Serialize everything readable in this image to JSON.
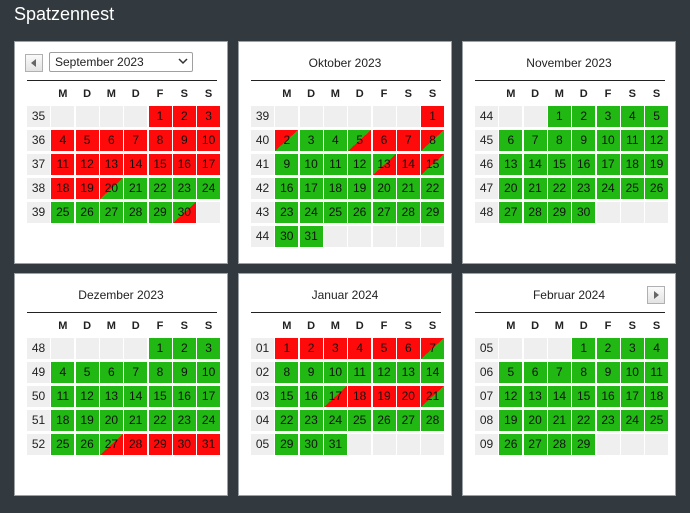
{
  "app": {
    "title": "Spatzennest"
  },
  "weekdays": [
    "M",
    "D",
    "M",
    "D",
    "F",
    "S",
    "S"
  ],
  "months": [
    {
      "label": "September 2023",
      "select": true,
      "prev": true,
      "weeks": [
        {
          "wk": "35",
          "days": [
            null,
            null,
            null,
            null,
            [
              "1",
              "b"
            ],
            [
              "2",
              "b"
            ],
            [
              "3",
              "b"
            ]
          ]
        },
        {
          "wk": "36",
          "days": [
            [
              "4",
              "b"
            ],
            [
              "5",
              "b"
            ],
            [
              "6",
              "b"
            ],
            [
              "7",
              "b"
            ],
            [
              "8",
              "b"
            ],
            [
              "9",
              "b"
            ],
            [
              "10",
              "b"
            ]
          ]
        },
        {
          "wk": "37",
          "days": [
            [
              "11",
              "b"
            ],
            [
              "12",
              "b"
            ],
            [
              "13",
              "b"
            ],
            [
              "14",
              "b"
            ],
            [
              "15",
              "b"
            ],
            [
              "16",
              "b"
            ],
            [
              "17",
              "b"
            ]
          ]
        },
        {
          "wk": "38",
          "days": [
            [
              "18",
              "b"
            ],
            [
              "19",
              "b"
            ],
            [
              "20",
              "o"
            ],
            [
              "21",
              "f"
            ],
            [
              "22",
              "f"
            ],
            [
              "23",
              "f"
            ],
            [
              "24",
              "f"
            ]
          ]
        },
        {
          "wk": "39",
          "days": [
            [
              "25",
              "f"
            ],
            [
              "26",
              "f"
            ],
            [
              "27",
              "f"
            ],
            [
              "28",
              "f"
            ],
            [
              "29",
              "f"
            ],
            [
              "30",
              "i"
            ],
            null
          ]
        }
      ]
    },
    {
      "label": "Oktober 2023",
      "weeks": [
        {
          "wk": "39",
          "days": [
            null,
            null,
            null,
            null,
            null,
            null,
            [
              "1",
              "b"
            ]
          ]
        },
        {
          "wk": "40",
          "days": [
            [
              "2",
              "o"
            ],
            [
              "3",
              "f"
            ],
            [
              "4",
              "f"
            ],
            [
              "5",
              "i"
            ],
            [
              "6",
              "b"
            ],
            [
              "7",
              "b"
            ],
            [
              "8",
              "o"
            ]
          ]
        },
        {
          "wk": "41",
          "days": [
            [
              "9",
              "f"
            ],
            [
              "10",
              "f"
            ],
            [
              "11",
              "f"
            ],
            [
              "12",
              "f"
            ],
            [
              "13",
              "i"
            ],
            [
              "14",
              "b"
            ],
            [
              "15",
              "o"
            ]
          ]
        },
        {
          "wk": "42",
          "days": [
            [
              "16",
              "f"
            ],
            [
              "17",
              "f"
            ],
            [
              "18",
              "f"
            ],
            [
              "19",
              "f"
            ],
            [
              "20",
              "f"
            ],
            [
              "21",
              "f"
            ],
            [
              "22",
              "f"
            ]
          ]
        },
        {
          "wk": "43",
          "days": [
            [
              "23",
              "f"
            ],
            [
              "24",
              "f"
            ],
            [
              "25",
              "f"
            ],
            [
              "26",
              "f"
            ],
            [
              "27",
              "f"
            ],
            [
              "28",
              "f"
            ],
            [
              "29",
              "f"
            ]
          ]
        },
        {
          "wk": "44",
          "days": [
            [
              "30",
              "f"
            ],
            [
              "31",
              "f"
            ],
            null,
            null,
            null,
            null,
            null
          ]
        }
      ]
    },
    {
      "label": "November 2023",
      "weeks": [
        {
          "wk": "44",
          "days": [
            null,
            null,
            [
              "1",
              "f"
            ],
            [
              "2",
              "f"
            ],
            [
              "3",
              "f"
            ],
            [
              "4",
              "f"
            ],
            [
              "5",
              "f"
            ]
          ]
        },
        {
          "wk": "45",
          "days": [
            [
              "6",
              "f"
            ],
            [
              "7",
              "f"
            ],
            [
              "8",
              "f"
            ],
            [
              "9",
              "f"
            ],
            [
              "10",
              "f"
            ],
            [
              "11",
              "f"
            ],
            [
              "12",
              "f"
            ]
          ]
        },
        {
          "wk": "46",
          "days": [
            [
              "13",
              "f"
            ],
            [
              "14",
              "f"
            ],
            [
              "15",
              "f"
            ],
            [
              "16",
              "f"
            ],
            [
              "17",
              "f"
            ],
            [
              "18",
              "f"
            ],
            [
              "19",
              "f"
            ]
          ]
        },
        {
          "wk": "47",
          "days": [
            [
              "20",
              "f"
            ],
            [
              "21",
              "f"
            ],
            [
              "22",
              "f"
            ],
            [
              "23",
              "f"
            ],
            [
              "24",
              "f"
            ],
            [
              "25",
              "f"
            ],
            [
              "26",
              "f"
            ]
          ]
        },
        {
          "wk": "48",
          "days": [
            [
              "27",
              "f"
            ],
            [
              "28",
              "f"
            ],
            [
              "29",
              "f"
            ],
            [
              "30",
              "f"
            ],
            null,
            null,
            null
          ]
        }
      ]
    },
    {
      "label": "Dezember 2023",
      "weeks": [
        {
          "wk": "48",
          "days": [
            null,
            null,
            null,
            null,
            [
              "1",
              "f"
            ],
            [
              "2",
              "f"
            ],
            [
              "3",
              "f"
            ]
          ]
        },
        {
          "wk": "49",
          "days": [
            [
              "4",
              "f"
            ],
            [
              "5",
              "f"
            ],
            [
              "6",
              "f"
            ],
            [
              "7",
              "f"
            ],
            [
              "8",
              "f"
            ],
            [
              "9",
              "f"
            ],
            [
              "10",
              "f"
            ]
          ]
        },
        {
          "wk": "50",
          "days": [
            [
              "11",
              "f"
            ],
            [
              "12",
              "f"
            ],
            [
              "13",
              "f"
            ],
            [
              "14",
              "f"
            ],
            [
              "15",
              "f"
            ],
            [
              "16",
              "f"
            ],
            [
              "17",
              "f"
            ]
          ]
        },
        {
          "wk": "51",
          "days": [
            [
              "18",
              "f"
            ],
            [
              "19",
              "f"
            ],
            [
              "20",
              "f"
            ],
            [
              "21",
              "f"
            ],
            [
              "22",
              "f"
            ],
            [
              "23",
              "f"
            ],
            [
              "24",
              "f"
            ]
          ]
        },
        {
          "wk": "52",
          "days": [
            [
              "25",
              "f"
            ],
            [
              "26",
              "f"
            ],
            [
              "27",
              "i"
            ],
            [
              "28",
              "b"
            ],
            [
              "29",
              "b"
            ],
            [
              "30",
              "b"
            ],
            [
              "31",
              "b"
            ]
          ]
        }
      ]
    },
    {
      "label": "Januar 2024",
      "weeks": [
        {
          "wk": "01",
          "days": [
            [
              "1",
              "b"
            ],
            [
              "2",
              "b"
            ],
            [
              "3",
              "b"
            ],
            [
              "4",
              "b"
            ],
            [
              "5",
              "b"
            ],
            [
              "6",
              "b"
            ],
            [
              "7",
              "o"
            ]
          ]
        },
        {
          "wk": "02",
          "days": [
            [
              "8",
              "f"
            ],
            [
              "9",
              "f"
            ],
            [
              "10",
              "f"
            ],
            [
              "11",
              "f"
            ],
            [
              "12",
              "f"
            ],
            [
              "13",
              "f"
            ],
            [
              "14",
              "f"
            ]
          ]
        },
        {
          "wk": "03",
          "days": [
            [
              "15",
              "f"
            ],
            [
              "16",
              "f"
            ],
            [
              "17",
              "i"
            ],
            [
              "18",
              "b"
            ],
            [
              "19",
              "b"
            ],
            [
              "20",
              "b"
            ],
            [
              "21",
              "o"
            ]
          ]
        },
        {
          "wk": "04",
          "days": [
            [
              "22",
              "f"
            ],
            [
              "23",
              "f"
            ],
            [
              "24",
              "f"
            ],
            [
              "25",
              "f"
            ],
            [
              "26",
              "f"
            ],
            [
              "27",
              "f"
            ],
            [
              "28",
              "f"
            ]
          ]
        },
        {
          "wk": "05",
          "days": [
            [
              "29",
              "f"
            ],
            [
              "30",
              "f"
            ],
            [
              "31",
              "f"
            ],
            null,
            null,
            null,
            null
          ]
        }
      ]
    },
    {
      "label": "Februar 2024",
      "next": true,
      "weeks": [
        {
          "wk": "05",
          "days": [
            null,
            null,
            null,
            [
              "1",
              "f"
            ],
            [
              "2",
              "f"
            ],
            [
              "3",
              "f"
            ],
            [
              "4",
              "f"
            ]
          ]
        },
        {
          "wk": "06",
          "days": [
            [
              "5",
              "f"
            ],
            [
              "6",
              "f"
            ],
            [
              "7",
              "f"
            ],
            [
              "8",
              "f"
            ],
            [
              "9",
              "f"
            ],
            [
              "10",
              "f"
            ],
            [
              "11",
              "f"
            ]
          ]
        },
        {
          "wk": "07",
          "days": [
            [
              "12",
              "f"
            ],
            [
              "13",
              "f"
            ],
            [
              "14",
              "f"
            ],
            [
              "15",
              "f"
            ],
            [
              "16",
              "f"
            ],
            [
              "17",
              "f"
            ],
            [
              "18",
              "f"
            ]
          ]
        },
        {
          "wk": "08",
          "days": [
            [
              "19",
              "f"
            ],
            [
              "20",
              "f"
            ],
            [
              "21",
              "f"
            ],
            [
              "22",
              "f"
            ],
            [
              "23",
              "f"
            ],
            [
              "24",
              "f"
            ],
            [
              "25",
              "f"
            ]
          ]
        },
        {
          "wk": "09",
          "days": [
            [
              "26",
              "f"
            ],
            [
              "27",
              "f"
            ],
            [
              "28",
              "f"
            ],
            [
              "29",
              "f"
            ],
            null,
            null,
            null
          ]
        }
      ]
    }
  ],
  "colors": {
    "free": "#22b814",
    "booked": "#ff0a0a",
    "background": "#323a3f"
  },
  "icons": {
    "prev": "triangle-left-icon",
    "next": "triangle-right-icon",
    "dropdown": "chevron-down-icon"
  }
}
